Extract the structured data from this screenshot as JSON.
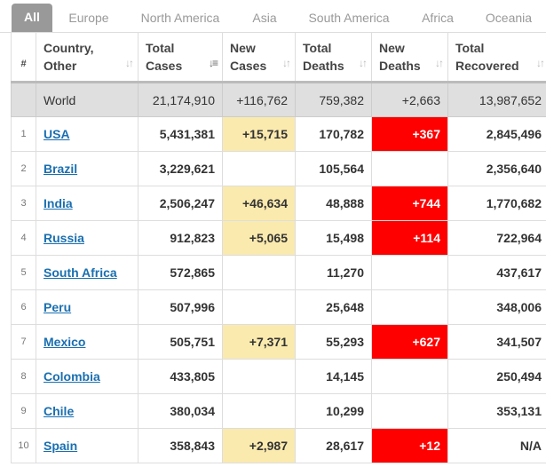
{
  "tabs": [
    "All",
    "Europe",
    "North America",
    "Asia",
    "South America",
    "Africa",
    "Oceania"
  ],
  "active_tab": "All",
  "headers": {
    "num": "#",
    "country": [
      "Country,",
      "Other"
    ],
    "total_cases": [
      "Total",
      "Cases"
    ],
    "new_cases": [
      "New",
      "Cases"
    ],
    "total_deaths": [
      "Total",
      "Deaths"
    ],
    "new_deaths": [
      "New",
      "Deaths"
    ],
    "total_recovered": [
      "Total",
      "Recovered"
    ]
  },
  "world": {
    "country": "World",
    "total_cases": "21,174,910",
    "new_cases": "+116,762",
    "total_deaths": "759,382",
    "new_deaths": "+2,663",
    "total_recovered": "13,987,652"
  },
  "rows": [
    {
      "num": "1",
      "country": "USA",
      "total_cases": "5,431,381",
      "new_cases": "+15,715",
      "total_deaths": "170,782",
      "new_deaths": "+367",
      "total_recovered": "2,845,496"
    },
    {
      "num": "2",
      "country": "Brazil",
      "total_cases": "3,229,621",
      "new_cases": "",
      "total_deaths": "105,564",
      "new_deaths": "",
      "total_recovered": "2,356,640"
    },
    {
      "num": "3",
      "country": "India",
      "total_cases": "2,506,247",
      "new_cases": "+46,634",
      "total_deaths": "48,888",
      "new_deaths": "+744",
      "total_recovered": "1,770,682"
    },
    {
      "num": "4",
      "country": "Russia",
      "total_cases": "912,823",
      "new_cases": "+5,065",
      "total_deaths": "15,498",
      "new_deaths": "+114",
      "total_recovered": "722,964"
    },
    {
      "num": "5",
      "country": "South Africa",
      "total_cases": "572,865",
      "new_cases": "",
      "total_deaths": "11,270",
      "new_deaths": "",
      "total_recovered": "437,617"
    },
    {
      "num": "6",
      "country": "Peru",
      "total_cases": "507,996",
      "new_cases": "",
      "total_deaths": "25,648",
      "new_deaths": "",
      "total_recovered": "348,006"
    },
    {
      "num": "7",
      "country": "Mexico",
      "total_cases": "505,751",
      "new_cases": "+7,371",
      "total_deaths": "55,293",
      "new_deaths": "+627",
      "total_recovered": "341,507"
    },
    {
      "num": "8",
      "country": "Colombia",
      "total_cases": "433,805",
      "new_cases": "",
      "total_deaths": "14,145",
      "new_deaths": "",
      "total_recovered": "250,494"
    },
    {
      "num": "9",
      "country": "Chile",
      "total_cases": "380,034",
      "new_cases": "",
      "total_deaths": "10,299",
      "new_deaths": "",
      "total_recovered": "353,131"
    },
    {
      "num": "10",
      "country": "Spain",
      "total_cases": "358,843",
      "new_cases": "+2,987",
      "total_deaths": "28,617",
      "new_deaths": "+12",
      "total_recovered": "N/A"
    }
  ],
  "colors": {
    "active_tab_bg": "#999999",
    "new_cases_highlight": "#fbeaae",
    "new_deaths_highlight": "#ff0000",
    "link": "#1a6fb0",
    "world_row_bg": "#dfdfdf"
  },
  "icons": {
    "sort_icon": "sort-arrows-icon",
    "sorted_desc_icon": "sort-desc-icon"
  }
}
